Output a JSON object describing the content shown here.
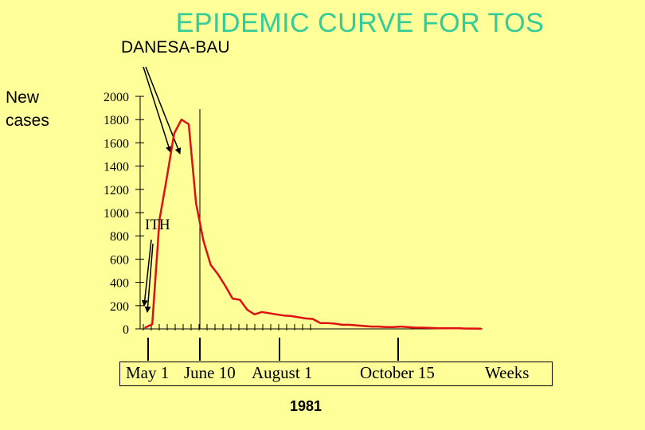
{
  "chart_data": {
    "type": "line",
    "title": "EPIDEMIC CURVE FOR TOS",
    "subtitle": "DANESA-BAU",
    "ylabel": "New cases",
    "xlabel": "Weeks",
    "ylim": [
      0,
      2000
    ],
    "yticks": [
      0,
      200,
      400,
      600,
      800,
      1000,
      1200,
      1400,
      1600,
      1800,
      2000
    ],
    "grid": false,
    "timeline": {
      "labels": [
        "May 1",
        "June 10",
        "August 1",
        "October 15",
        "Weeks"
      ],
      "year": "1981"
    },
    "annotation": "ITH",
    "series": [
      {
        "color": "#dd1111",
        "x": [
          0,
          1,
          2,
          3,
          4,
          5,
          6,
          7,
          8,
          9,
          10,
          11,
          12,
          13,
          14,
          15,
          16,
          17,
          18,
          19,
          20,
          21,
          22,
          23,
          24,
          25,
          26,
          27,
          28,
          29,
          30,
          31,
          32,
          33,
          34,
          35,
          36,
          37,
          38,
          39,
          40,
          41,
          42,
          43,
          44,
          45,
          46
        ],
        "y": [
          10,
          40,
          940,
          1300,
          1680,
          1800,
          1760,
          1080,
          760,
          550,
          470,
          370,
          260,
          250,
          165,
          125,
          145,
          135,
          125,
          115,
          110,
          100,
          90,
          85,
          50,
          50,
          45,
          35,
          35,
          30,
          25,
          20,
          20,
          15,
          15,
          20,
          15,
          10,
          10,
          8,
          6,
          5,
          5,
          5,
          3,
          3,
          2
        ]
      }
    ]
  }
}
